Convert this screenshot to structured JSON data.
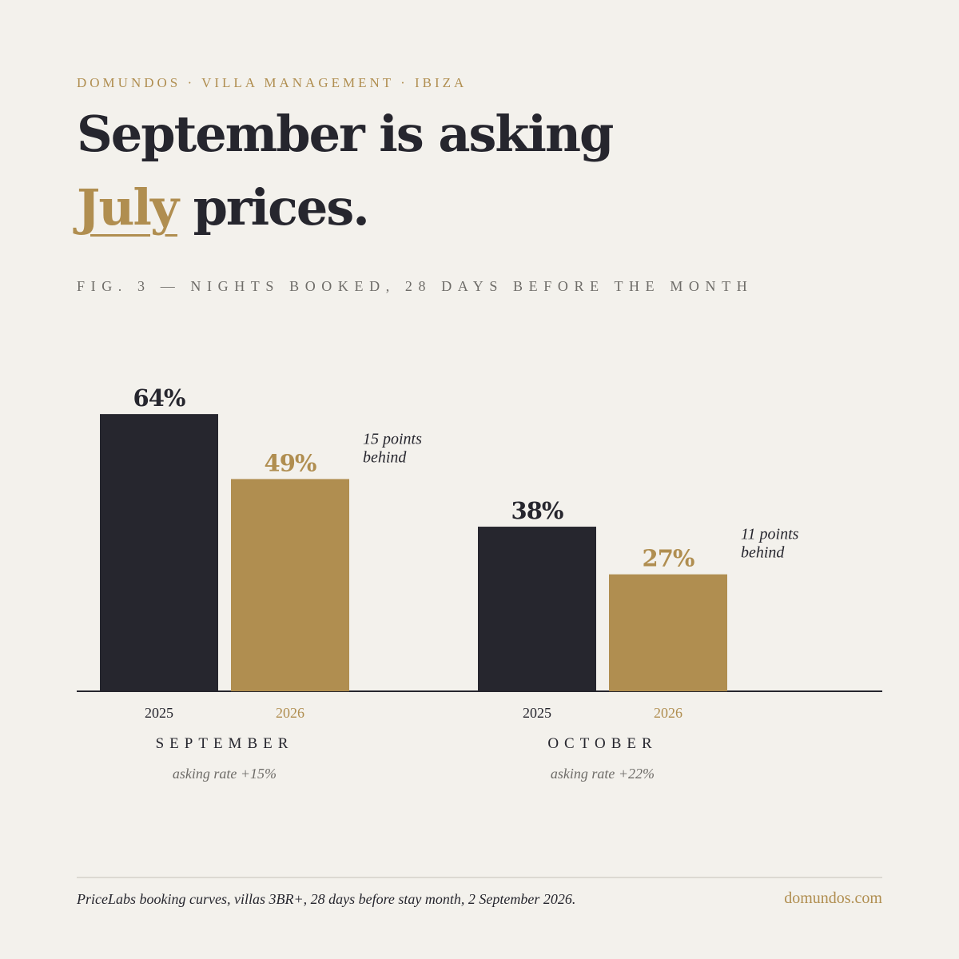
{
  "header": {
    "eyebrow": "DOMUNDOS · VILLA MANAGEMENT · IBIZA",
    "headline_line1": "September is asking",
    "headline_accent": "July",
    "headline_rest": " prices."
  },
  "figure": {
    "caption": "FIG. 3 — NIGHTS BOOKED, 28 DAYS BEFORE THE MONTH"
  },
  "chart_data": {
    "type": "bar",
    "unit": "%",
    "series_colors": {
      "2025": "#26262e",
      "2026": "#b08e50"
    },
    "ylim": [
      0,
      100
    ],
    "grid": false,
    "legend": "none",
    "groups": [
      {
        "category": "SEPTEMBER",
        "note": "asking rate +15%",
        "gap_annotation": [
          "15 points",
          "behind"
        ],
        "bars": [
          {
            "year": "2025",
            "value": 64,
            "label": "64%"
          },
          {
            "year": "2026",
            "value": 49,
            "label": "49%"
          }
        ]
      },
      {
        "category": "OCTOBER",
        "note": "asking rate +22%",
        "gap_annotation": [
          "11 points",
          "behind"
        ],
        "bars": [
          {
            "year": "2025",
            "value": 38,
            "label": "38%"
          },
          {
            "year": "2026",
            "value": 27,
            "label": "27%"
          }
        ]
      }
    ]
  },
  "footer": {
    "source": "PriceLabs booking curves, villas 3BR+, 28 days before stay month, 2 September 2026.",
    "site": "domundos.com"
  }
}
